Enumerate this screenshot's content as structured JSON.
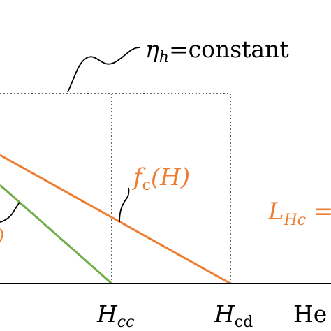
{
  "labels": {
    "eta_symbol": "η",
    "eta_sub": "h",
    "eta_rest": "=constant",
    "fc_f": "f",
    "fc_sub": "c",
    "fc_arg": "(H)",
    "lhc_L": "L",
    "lhc_sub": "Hc",
    "lhc_rest": " =",
    "tick_hcc_H": "H",
    "tick_hcc_sub": "cc",
    "tick_hcd_H": "H",
    "tick_hcd_sub": "cd",
    "axis_partial": "He"
  },
  "colors": {
    "orange": "#ed7d31",
    "green": "#70ad47",
    "black": "#000000",
    "dotted": "#333333"
  }
}
